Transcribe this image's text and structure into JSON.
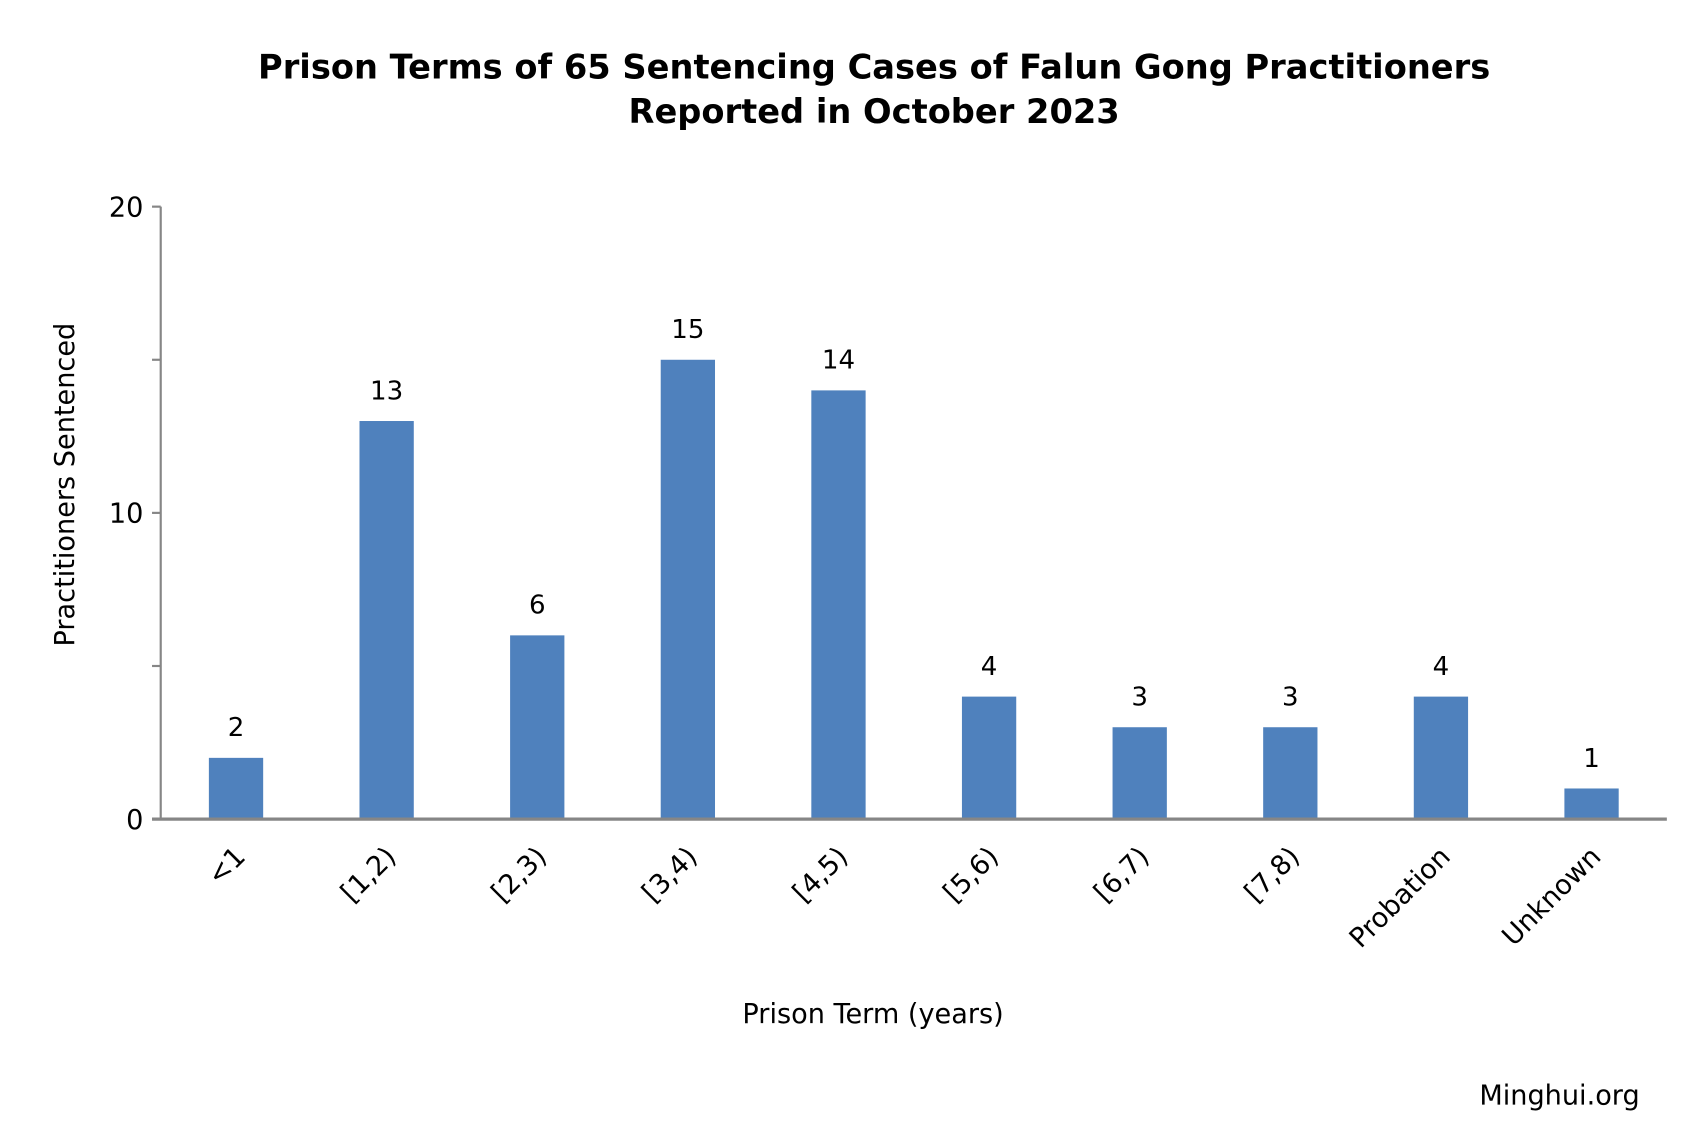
{
  "chart_data": {
    "type": "bar",
    "title": [
      "Prison Terms of 65 Sentencing Cases of Falun Gong Practitioners",
      "Reported in October 2023"
    ],
    "xlabel": "Prison Term (years)",
    "ylabel": "Practitioners Sentenced",
    "categories": [
      "<1",
      "[1,2)",
      "[2,3)",
      "[3,4)",
      "[4,5)",
      "[5,6)",
      "[6,7)",
      "[7,8)",
      "Probation",
      "Unknown"
    ],
    "values": [
      2,
      13,
      6,
      15,
      14,
      4,
      3,
      3,
      4,
      1
    ],
    "ylim": [
      0,
      20
    ],
    "yticks": [
      0,
      5,
      10,
      15,
      20
    ],
    "ytick_labels": [
      "0",
      "10",
      "20"
    ],
    "grid": false,
    "bar_color": "#4F81BD",
    "data_labels": true
  },
  "source": "Minghui.org"
}
